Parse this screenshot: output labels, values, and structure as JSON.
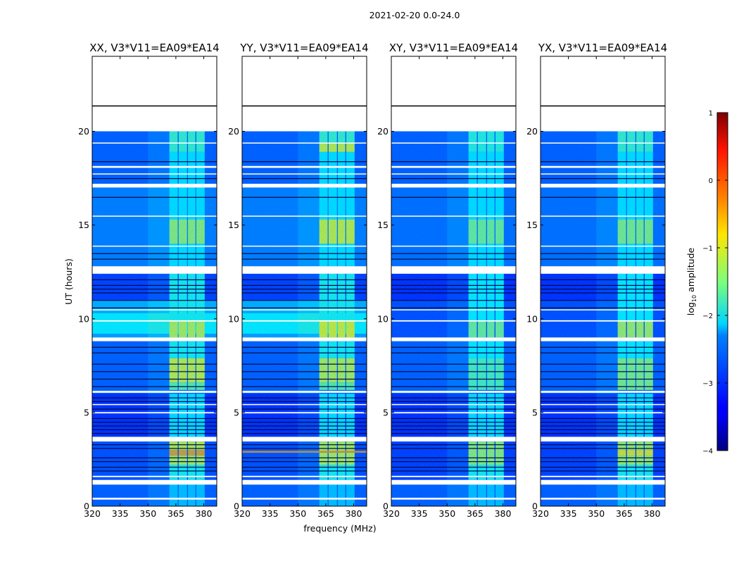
{
  "figure_title": "2021-02-20 0.0-24.0",
  "chart_data": {
    "type": "heatmap",
    "title": "2021-02-20 0.0-24.0",
    "xlabel": "frequency (MHz)",
    "ylabel": "UT (hours)",
    "xlim": [
      320,
      387
    ],
    "ylim": [
      0,
      24
    ],
    "xticks": [
      320,
      335,
      350,
      365,
      380
    ],
    "yticks": [
      0,
      5,
      10,
      15,
      20
    ],
    "data_time_range": [
      0,
      20
    ],
    "colorbar": {
      "label": "log10 amplitude",
      "label_main": "log",
      "label_sub": "10",
      "label_rest": " amplitude",
      "range": [
        -4,
        1
      ],
      "ticks": [
        1,
        0,
        -1,
        -2,
        -3,
        -4
      ],
      "tick_labels": [
        "1",
        "0",
        "−1",
        "−2",
        "−3",
        "−4"
      ],
      "colormap": "jet"
    },
    "rfi_subbands_mhz": [
      [
        361.5,
        366
      ],
      [
        366.5,
        371
      ],
      [
        371.5,
        375.5
      ],
      [
        376,
        380.5
      ]
    ],
    "flagged_gaps_hours": [
      [
        0.35,
        0.45
      ],
      [
        1.15,
        1.4
      ],
      [
        1.55,
        1.62
      ],
      [
        3.45,
        3.7
      ],
      [
        4.95,
        5.02
      ],
      [
        5.4,
        5.45
      ],
      [
        6.05,
        6.15
      ],
      [
        8.8,
        9.0
      ],
      [
        9.85,
        9.92
      ],
      [
        10.45,
        10.5
      ],
      [
        12.4,
        12.8
      ],
      [
        13.85,
        13.9
      ],
      [
        15.45,
        15.5
      ],
      [
        17.0,
        17.2
      ],
      [
        17.7,
        17.75
      ],
      [
        18.05,
        18.15
      ],
      [
        19.35,
        19.4
      ],
      [
        20.0,
        21.35
      ]
    ],
    "dark_lines_hours": [
      1.9,
      2.1,
      2.4,
      2.6,
      3.1,
      3.3,
      3.9,
      4.1,
      4.3,
      4.5,
      4.7,
      5.2,
      5.6,
      5.8,
      6.4,
      6.8,
      7.2,
      7.6,
      8.2,
      8.5,
      10.6,
      11.0,
      11.4,
      11.6,
      11.8,
      12.1,
      13.2,
      13.5,
      16.5,
      17.5,
      18.4
    ],
    "series": [
      {
        "name": "XX, V3*V11=EA09*EA14",
        "background": [
          [
            0,
            1.3,
            -3.0
          ],
          [
            1.3,
            3.5,
            -3.1
          ],
          [
            3.7,
            6.0,
            -3.3
          ],
          [
            6.0,
            8.8,
            -3.0
          ],
          [
            9.0,
            9.2,
            -2.6
          ],
          [
            9.2,
            10.3,
            -2.1
          ],
          [
            10.3,
            11.0,
            -2.5
          ],
          [
            11.0,
            12.4,
            -3.2
          ],
          [
            12.8,
            17.0,
            -2.8
          ],
          [
            17.2,
            20.0,
            -3.0
          ]
        ],
        "rfi": [
          [
            0,
            1.3,
            -2.4
          ],
          [
            1.4,
            2.2,
            -2.0
          ],
          [
            2.2,
            2.7,
            -1.1
          ],
          [
            2.7,
            3.0,
            -0.4
          ],
          [
            3.0,
            3.45,
            -1.0
          ],
          [
            3.7,
            6.0,
            -2.2
          ],
          [
            6.2,
            6.6,
            -1.6
          ],
          [
            6.6,
            7.9,
            -1.0
          ],
          [
            7.9,
            8.8,
            -2.0
          ],
          [
            9.0,
            9.9,
            -1.1
          ],
          [
            9.9,
            12.4,
            -2.0
          ],
          [
            12.8,
            14.0,
            -2.2
          ],
          [
            14.0,
            15.3,
            -1.3
          ],
          [
            15.3,
            18.9,
            -2.2
          ],
          [
            18.9,
            20.0,
            -1.8
          ]
        ],
        "lines": []
      },
      {
        "name": "YY, V3*V11=EA09*EA14",
        "background": [
          [
            0,
            1.3,
            -3.0
          ],
          [
            1.3,
            3.5,
            -3.1
          ],
          [
            3.7,
            6.0,
            -3.3
          ],
          [
            6.0,
            8.8,
            -3.0
          ],
          [
            9.0,
            9.2,
            -2.6
          ],
          [
            9.2,
            10.3,
            -2.1
          ],
          [
            10.3,
            11.0,
            -2.5
          ],
          [
            11.0,
            12.4,
            -3.2
          ],
          [
            12.8,
            17.0,
            -2.8
          ],
          [
            17.2,
            20.0,
            -3.0
          ]
        ],
        "rfi": [
          [
            0,
            1.3,
            -2.4
          ],
          [
            1.4,
            2.2,
            -2.0
          ],
          [
            2.2,
            3.45,
            -1.1
          ],
          [
            3.7,
            6.0,
            -2.2
          ],
          [
            6.2,
            6.6,
            -1.6
          ],
          [
            6.6,
            7.9,
            -1.1
          ],
          [
            7.9,
            8.8,
            -2.0
          ],
          [
            9.0,
            9.9,
            -0.9
          ],
          [
            9.9,
            12.4,
            -2.0
          ],
          [
            12.8,
            14.0,
            -2.2
          ],
          [
            14.0,
            15.3,
            -1.0
          ],
          [
            15.3,
            18.9,
            -2.2
          ],
          [
            18.9,
            19.35,
            -1.0
          ],
          [
            19.4,
            20.0,
            -1.8
          ]
        ],
        "lines": [
          [
            2.85,
            2.95,
            -0.3
          ]
        ]
      },
      {
        "name": "XY, V3*V11=EA09*EA14",
        "background": [
          [
            0,
            1.3,
            -3.0
          ],
          [
            1.3,
            3.5,
            -3.2
          ],
          [
            3.7,
            6.0,
            -3.3
          ],
          [
            6.0,
            8.8,
            -3.0
          ],
          [
            9.0,
            11.0,
            -3.1
          ],
          [
            11.0,
            12.4,
            -3.3
          ],
          [
            12.8,
            17.0,
            -2.9
          ],
          [
            17.2,
            20.0,
            -3.0
          ]
        ],
        "rfi": [
          [
            0,
            1.3,
            -2.4
          ],
          [
            1.4,
            2.2,
            -2.0
          ],
          [
            2.2,
            3.45,
            -1.3
          ],
          [
            3.7,
            6.0,
            -2.2
          ],
          [
            6.2,
            7.9,
            -1.7
          ],
          [
            7.9,
            8.8,
            -2.1
          ],
          [
            9.0,
            9.9,
            -1.5
          ],
          [
            9.9,
            12.4,
            -2.1
          ],
          [
            12.8,
            14.0,
            -2.2
          ],
          [
            14.0,
            15.3,
            -1.5
          ],
          [
            15.3,
            18.9,
            -2.2
          ],
          [
            18.9,
            20.0,
            -1.9
          ]
        ],
        "lines": []
      },
      {
        "name": "YX, V3*V11=EA09*EA14",
        "background": [
          [
            0,
            1.3,
            -3.0
          ],
          [
            1.3,
            3.5,
            -3.2
          ],
          [
            3.7,
            6.0,
            -3.3
          ],
          [
            6.0,
            8.8,
            -3.0
          ],
          [
            9.0,
            11.0,
            -3.1
          ],
          [
            11.0,
            12.4,
            -3.3
          ],
          [
            12.8,
            17.0,
            -2.9
          ],
          [
            17.2,
            20.0,
            -3.0
          ]
        ],
        "rfi": [
          [
            0,
            1.3,
            -2.4
          ],
          [
            1.4,
            2.2,
            -2.0
          ],
          [
            2.2,
            2.7,
            -1.2
          ],
          [
            2.7,
            3.0,
            -0.8
          ],
          [
            3.0,
            3.45,
            -1.2
          ],
          [
            3.7,
            6.0,
            -2.2
          ],
          [
            6.2,
            7.9,
            -1.4
          ],
          [
            7.9,
            8.8,
            -2.1
          ],
          [
            9.0,
            9.9,
            -1.2
          ],
          [
            9.9,
            12.4,
            -2.1
          ],
          [
            12.8,
            14.0,
            -2.2
          ],
          [
            14.0,
            15.3,
            -1.4
          ],
          [
            15.3,
            18.9,
            -2.2
          ],
          [
            18.9,
            20.0,
            -1.8
          ]
        ],
        "lines": []
      }
    ]
  }
}
